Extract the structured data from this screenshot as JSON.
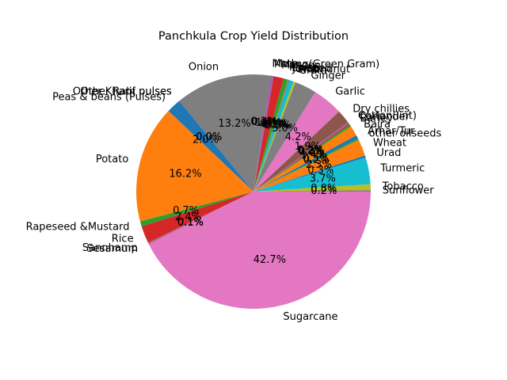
{
  "chart_data": {
    "type": "pie",
    "title": "Panchkula Crop Yield Distribution",
    "start_angle_deg": 0,
    "direction": "counterclockwise",
    "slices": [
      {
        "label": "Sunflower",
        "value": 0.2,
        "color": "#7f7f7f"
      },
      {
        "label": "Tobacco",
        "value": 0.8,
        "color": "#bcbd22"
      },
      {
        "label": "Turmeric",
        "value": 3.7,
        "color": "#17becf"
      },
      {
        "label": "Urad",
        "value": 0.3,
        "color": "#1f77b4"
      },
      {
        "label": "Wheat",
        "value": 2.3,
        "color": "#ff7f0e"
      },
      {
        "label": "other oilseeds",
        "value": 0.2,
        "color": "#2ca02c"
      },
      {
        "label": "Arhar/Tur",
        "value": 0.5,
        "color": "#1f77b4"
      },
      {
        "label": "Bajra",
        "value": 1.4,
        "color": "#ff7f0e"
      },
      {
        "label": "Barley",
        "value": 0.3,
        "color": "#2ca02c"
      },
      {
        "label": "Coriander",
        "value": 0.2,
        "color": "#d62728"
      },
      {
        "label": "Cotton(lint)",
        "value": 0.2,
        "color": "#9467bd"
      },
      {
        "label": "Dry chillies",
        "value": 1.9,
        "color": "#8c564b"
      },
      {
        "label": "Garlic",
        "value": 4.2,
        "color": "#e377c2"
      },
      {
        "label": "Ginger",
        "value": 3.0,
        "color": "#7f7f7f"
      },
      {
        "label": "Gram",
        "value": 0.3,
        "color": "#bcbd22"
      },
      {
        "label": "Groundnut",
        "value": 0.6,
        "color": "#17becf"
      },
      {
        "label": "Jowar",
        "value": 0.1,
        "color": "#1f77b4"
      },
      {
        "label": "Linseed",
        "value": 0.1,
        "color": "#ff7f0e"
      },
      {
        "label": "Maize",
        "value": 0.6,
        "color": "#2ca02c"
      },
      {
        "label": "Masoor",
        "value": 1.4,
        "color": "#d62728"
      },
      {
        "label": "Moong(Green Gram)",
        "value": 0.4,
        "color": "#9467bd"
      },
      {
        "label": "Moth",
        "value": 0.1,
        "color": "#8c564b"
      },
      {
        "label": "Onion",
        "value": 13.2,
        "color": "#7f7f7f"
      },
      {
        "label": "Other Kharif pulses",
        "value": 0.0,
        "color": "#bcbd22"
      },
      {
        "label": "Other Rabi pulses",
        "value": 0.0,
        "color": "#17becf"
      },
      {
        "label": "Peas & beans (Pulses)",
        "value": 2.0,
        "color": "#1f77b4"
      },
      {
        "label": "Potato",
        "value": 16.2,
        "color": "#ff7f0e"
      },
      {
        "label": "Rapeseed &Mustard",
        "value": 0.7,
        "color": "#2ca02c"
      },
      {
        "label": "Rice",
        "value": 2.4,
        "color": "#d62728"
      },
      {
        "label": "Sannhamp",
        "value": 0.1,
        "color": "#9467bd"
      },
      {
        "label": "Sesamum",
        "value": 0.1,
        "color": "#8c564b"
      },
      {
        "label": "Sugarcane",
        "value": 42.7,
        "color": "#e377c2"
      }
    ],
    "percent_labels": [
      "0.2%",
      "0.8%",
      "3.7%",
      "0.3%",
      "2.3%",
      "0.2%",
      "0.5%",
      "1.4%",
      "0.3%",
      "0.2%",
      "0.2%",
      "1.9%",
      "4.2%",
      "3.0%",
      "0.3%",
      "0.6%",
      "0.1%",
      "0.1%",
      "0.6%",
      "1.4%",
      "0.4%",
      "0.1%",
      "13.2%",
      "0.0%",
      "0.0%",
      "2.0%",
      "16.2%",
      "0.7%",
      "2.4%",
      "0.1%",
      "0.1%",
      "42.7%"
    ]
  }
}
